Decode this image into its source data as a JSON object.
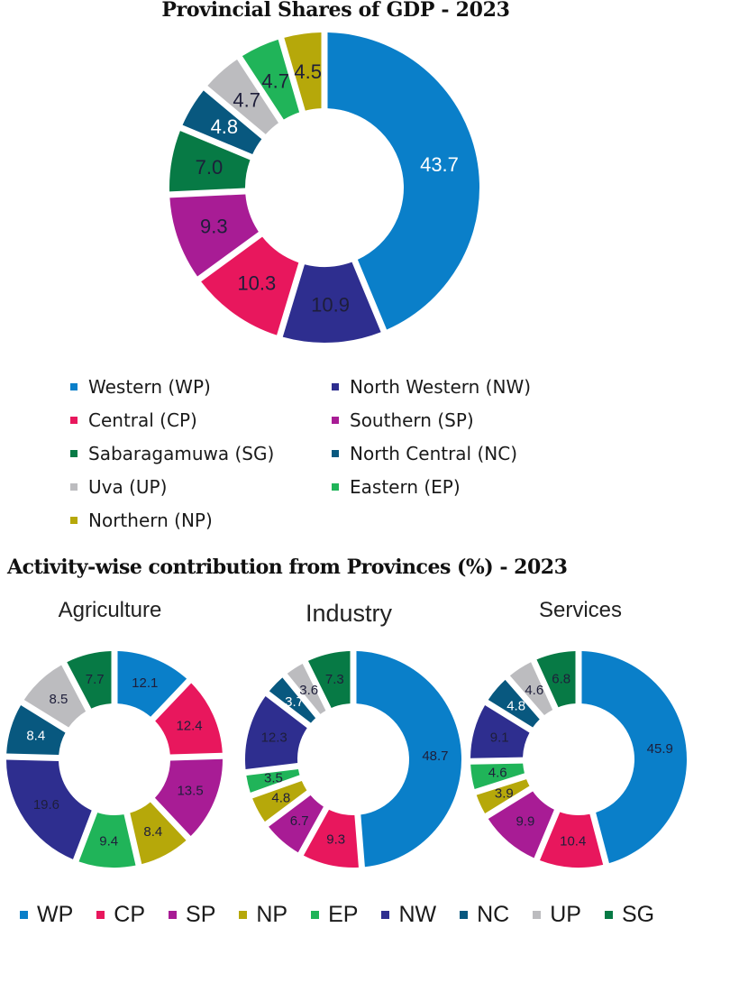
{
  "colors": {
    "WP": "#0a7fc9",
    "NW": "#2e2e8f",
    "CP": "#e8175d",
    "SP": "#a81c95",
    "SG": "#077a45",
    "NC": "#08587f",
    "UP": "#bcbcbf",
    "EP": "#20b459",
    "NP": "#b6a80a"
  },
  "chart_data": [
    {
      "type": "pie",
      "subtype": "donut",
      "title": "Provincial Shares of GDP - 2023",
      "categories": [
        "WP",
        "NW",
        "CP",
        "SP",
        "SG",
        "NC",
        "UP",
        "EP",
        "NP"
      ],
      "values": [
        43.7,
        10.9,
        10.3,
        9.3,
        7.0,
        4.8,
        4.7,
        4.7,
        4.5
      ],
      "labels": [
        "43.7",
        "10.9",
        "10.3",
        "9.3",
        "7.0",
        "4.8",
        "4.7",
        "4.7",
        "4.5"
      ],
      "legend": [
        {
          "code": "WP",
          "label": "Western (WP)"
        },
        {
          "code": "NW",
          "label": "North Western (NW)"
        },
        {
          "code": "CP",
          "label": "Central (CP)"
        },
        {
          "code": "SP",
          "label": "Southern (SP)"
        },
        {
          "code": "SG",
          "label": "Sabaragamuwa (SG)"
        },
        {
          "code": "NC",
          "label": "North Central (NC)"
        },
        {
          "code": "UP",
          "label": "Uva (UP)"
        },
        {
          "code": "EP",
          "label": "Eastern (EP)"
        },
        {
          "code": "NP",
          "label": "Northern (NP)"
        }
      ],
      "legend_placement": "bottom"
    },
    {
      "type": "pie",
      "subtype": "donut",
      "title": "Agriculture",
      "group_title": "Activity-wise contribution from Provinces (%) - 2023",
      "categories": [
        "WP",
        "CP",
        "SP",
        "NP",
        "EP",
        "NW",
        "NC",
        "UP",
        "SG"
      ],
      "values": [
        12.1,
        12.4,
        13.5,
        8.4,
        9.4,
        19.6,
        8.4,
        8.5,
        7.7
      ],
      "labels": [
        "12.1",
        "12.4",
        "13.5",
        "8.4",
        "9.4",
        "19.6",
        "8.4",
        "8.5",
        "7.7"
      ]
    },
    {
      "type": "pie",
      "subtype": "donut",
      "title": "Industry",
      "group_title": "Activity-wise contribution from Provinces (%) - 2023",
      "categories": [
        "WP",
        "CP",
        "SP",
        "NP",
        "EP",
        "NW",
        "NC",
        "UP",
        "SG"
      ],
      "values": [
        48.7,
        9.3,
        6.7,
        4.8,
        3.5,
        12.3,
        3.7,
        3.6,
        7.3
      ],
      "labels": [
        "48.7",
        "9.3",
        "6.7",
        "4.8",
        "3.5",
        "12.3",
        "3.7",
        "3.6",
        "7.3"
      ]
    },
    {
      "type": "pie",
      "subtype": "donut",
      "title": "Services",
      "group_title": "Activity-wise contribution from Provinces (%) - 2023",
      "categories": [
        "WP",
        "CP",
        "SP",
        "NP",
        "EP",
        "NW",
        "NC",
        "UP",
        "SG"
      ],
      "values": [
        45.9,
        10.4,
        9.9,
        3.9,
        4.6,
        9.1,
        4.8,
        4.6,
        6.8
      ],
      "labels": [
        "45.9",
        "10.4",
        "9.9",
        "3.9",
        "4.6",
        "9.1",
        "4.8",
        "4.6",
        "6.8"
      ]
    }
  ],
  "titles": {
    "main": "Provincial Shares of GDP - 2023",
    "activity": "Activity-wise contribution from Provinces (%) - 2023",
    "agriculture": "Agriculture",
    "industry": "Industry",
    "services": "Services"
  },
  "bottom_legend": [
    "WP",
    "CP",
    "SP",
    "NP",
    "EP",
    "NW",
    "NC",
    "UP",
    "SG"
  ],
  "label_text_colors": {
    "light": [
      "NC"
    ],
    "light_main": [
      "WP",
      "NC"
    ]
  }
}
